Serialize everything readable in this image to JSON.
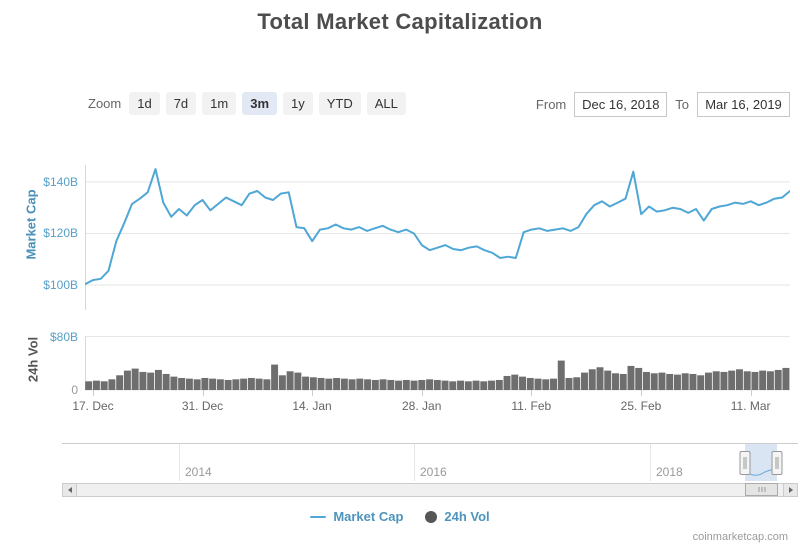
{
  "title": "Total Market Capitalization",
  "toolbar": {
    "zoom_label": "Zoom",
    "zoom_options": [
      "1d",
      "7d",
      "1m",
      "3m",
      "1y",
      "YTD",
      "ALL"
    ],
    "zoom_selected": "3m",
    "from_label": "From",
    "from_value": "Dec 16, 2018",
    "to_label": "To",
    "to_value": "Mar 16, 2019"
  },
  "chart_data": {
    "type": "line",
    "title": "Total Market Capitalization",
    "x_start": "Dec 16, 2018",
    "x_end": "Mar 16, 2019",
    "x_interval": "daily",
    "x_tick_labels": [
      "17. Dec",
      "31. Dec",
      "14. Jan",
      "28. Jan",
      "11. Feb",
      "25. Feb",
      "11. Mar"
    ],
    "grid": true,
    "series": [
      {
        "name": "Market Cap",
        "type": "line",
        "color": "#4fa7d6",
        "axis": {
          "title": "Market Cap",
          "ticks": [
            "$140B",
            "$120B",
            "$100B"
          ],
          "tick_values": [
            140,
            120,
            100
          ],
          "ylim": [
            95,
            147
          ],
          "unit": "USD billions"
        },
        "values": [
          100.3,
          101.9,
          102.4,
          105.5,
          117,
          124,
          131.5,
          133.5,
          136,
          145,
          132,
          126.5,
          129.5,
          127,
          131,
          133,
          129,
          131.5,
          134,
          132.5,
          131,
          135.5,
          136.5,
          134,
          133,
          135.5,
          136,
          122.5,
          122,
          117,
          121.5,
          122,
          123.5,
          122,
          121.5,
          122.5,
          121,
          122,
          123,
          121.5,
          120.5,
          121.5,
          120,
          115.5,
          113.5,
          114.5,
          115.5,
          114,
          113.5,
          114.5,
          115,
          113.5,
          112.5,
          110.5,
          111,
          110.5,
          120.5,
          121.5,
          122,
          121,
          121.5,
          122,
          121,
          122.5,
          127.5,
          131,
          132.5,
          130.5,
          132,
          133.5,
          144,
          127.5,
          130.5,
          128.5,
          129,
          130,
          129.5,
          128,
          129.5,
          125,
          129.5,
          130.5,
          131,
          132,
          131.5,
          132.5,
          131,
          132,
          133.5,
          134,
          136.5
        ]
      },
      {
        "name": "24h Vol",
        "type": "column",
        "color": "#6e6e6e",
        "axis": {
          "title": "24h Vol",
          "ticks": [
            "$80B",
            "0"
          ],
          "tick_values": [
            80,
            0
          ],
          "ylim": [
            0,
            80
          ],
          "unit": "USD billions"
        },
        "values": [
          13,
          14,
          13,
          16,
          22,
          29,
          32,
          27,
          26,
          30,
          24,
          20,
          18,
          17,
          16,
          18,
          17,
          16,
          15,
          16,
          17,
          18,
          17,
          16,
          38,
          22,
          28,
          26,
          20,
          19,
          18,
          17,
          18,
          17,
          16,
          17,
          16,
          15,
          16,
          15,
          14,
          15,
          14,
          15,
          16,
          15,
          14,
          13,
          14,
          13,
          14,
          13,
          14,
          15,
          21,
          23,
          20,
          18,
          17,
          16,
          17,
          44,
          18,
          19,
          26,
          31,
          34,
          29,
          25,
          24,
          36,
          33,
          27,
          25,
          26,
          24,
          23,
          25,
          24,
          22,
          26,
          28,
          27,
          29,
          31,
          28,
          27,
          29,
          28,
          30,
          33
        ]
      }
    ],
    "legend_position": "bottom"
  },
  "navigator": {
    "year_labels": [
      "2014",
      "2016",
      "2018"
    ],
    "selection_color": "#c8dcf0"
  },
  "legend": {
    "items": [
      {
        "label": "Market Cap",
        "marker": "line-icon",
        "color": "#4fa7d6"
      },
      {
        "label": "24h Vol",
        "marker": "circle-icon",
        "color": "#565656"
      }
    ]
  },
  "credit": "coinmarketcap.com"
}
